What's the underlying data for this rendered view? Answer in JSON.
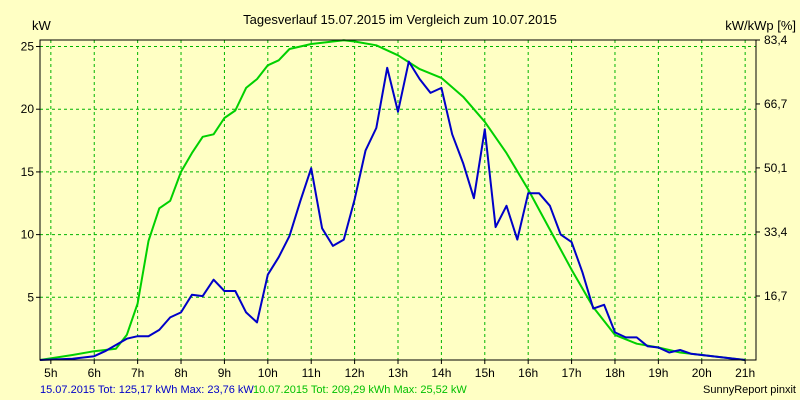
{
  "chart_data": {
    "type": "line",
    "title": "Tagesverlauf 15.07.2015 im Vergleich zum 10.07.2015",
    "ylabel_left": "kW",
    "ylabel_right": "kW/kWp [%]",
    "xlim": [
      4.75,
      21.25
    ],
    "ylim": [
      0,
      25.52
    ],
    "x_ticks": [
      5,
      6,
      7,
      8,
      9,
      10,
      11,
      12,
      13,
      14,
      15,
      16,
      17,
      18,
      19,
      20,
      21
    ],
    "x_tick_labels": [
      "5h",
      "6h",
      "7h",
      "8h",
      "9h",
      "10h",
      "11h",
      "12h",
      "13h",
      "14h",
      "15h",
      "16h",
      "17h",
      "18h",
      "19h",
      "20h",
      "21h"
    ],
    "y_ticks_left": [
      5,
      10,
      15,
      20,
      25
    ],
    "y_tick_labels_left": [
      "5",
      "10",
      "15",
      "20",
      "25"
    ],
    "y_ticks_right": [
      5.105,
      10.21,
      15.32,
      20.42,
      25.52
    ],
    "y_tick_labels_right": [
      "16,7",
      "33,4",
      "50,1",
      "66,7",
      "83,4"
    ],
    "grid": true,
    "series": [
      {
        "name": "15.07.2015",
        "color": "#0000c8",
        "x": [
          4.75,
          5.5,
          6.0,
          6.25,
          6.5,
          6.75,
          7.0,
          7.25,
          7.5,
          7.75,
          8.0,
          8.25,
          8.5,
          8.75,
          9.0,
          9.25,
          9.5,
          9.75,
          10.0,
          10.25,
          10.5,
          10.75,
          11.0,
          11.25,
          11.5,
          11.75,
          12.0,
          12.25,
          12.5,
          12.75,
          13.0,
          13.25,
          13.5,
          13.75,
          14.0,
          14.25,
          14.5,
          14.75,
          15.0,
          15.25,
          15.5,
          15.75,
          16.0,
          16.25,
          16.5,
          16.75,
          17.0,
          17.25,
          17.5,
          17.75,
          18.0,
          18.25,
          18.5,
          18.75,
          19.0,
          19.25,
          19.5,
          19.75,
          20.0,
          20.25,
          20.5,
          20.75,
          21.0
        ],
        "y": [
          0.0,
          0.1,
          0.3,
          0.7,
          1.2,
          1.7,
          1.9,
          1.9,
          2.4,
          3.4,
          3.8,
          5.2,
          5.1,
          6.4,
          5.5,
          5.5,
          3.8,
          3.0,
          6.8,
          8.2,
          9.9,
          12.7,
          15.3,
          10.5,
          9.1,
          9.6,
          12.8,
          16.7,
          18.5,
          23.3,
          19.8,
          23.8,
          22.4,
          21.3,
          21.7,
          18.0,
          15.7,
          12.9,
          18.4,
          10.6,
          12.3,
          9.6,
          13.3,
          13.3,
          12.3,
          10.0,
          9.4,
          7.0,
          4.1,
          4.4,
          2.2,
          1.8,
          1.8,
          1.1,
          1.0,
          0.6,
          0.8,
          0.5,
          0.4,
          0.3,
          0.2,
          0.1,
          0.0
        ]
      },
      {
        "name": "10.07.2015",
        "color": "#00d000",
        "x": [
          4.75,
          5.5,
          6.0,
          6.5,
          6.75,
          7.0,
          7.25,
          7.5,
          7.75,
          8.0,
          8.25,
          8.5,
          8.75,
          9.0,
          9.25,
          9.5,
          9.75,
          10.0,
          10.25,
          10.5,
          10.75,
          11.0,
          11.25,
          11.5,
          11.75,
          12.0,
          12.5,
          13.0,
          13.5,
          14.0,
          14.5,
          15.0,
          15.5,
          16.0,
          16.5,
          17.0,
          17.5,
          18.0,
          18.5,
          19.0,
          19.5,
          20.0,
          20.5,
          21.0
        ],
        "y": [
          0.0,
          0.4,
          0.7,
          0.9,
          2.0,
          4.5,
          9.5,
          12.1,
          12.7,
          15.0,
          16.5,
          17.8,
          18.0,
          19.3,
          19.9,
          21.7,
          22.4,
          23.5,
          23.9,
          24.8,
          25.0,
          25.2,
          25.3,
          25.4,
          25.5,
          25.4,
          25.1,
          24.3,
          23.2,
          22.5,
          21.0,
          19.0,
          16.5,
          13.6,
          10.4,
          7.2,
          4.2,
          2.0,
          1.3,
          1.0,
          0.6,
          0.4,
          0.2,
          0.0
        ]
      }
    ]
  },
  "footer": {
    "series1_label": "15.07.2015 Tot: 125,17 kWh Max: 23,76 kW",
    "series2_label": "10.07.2015 Tot: 209,29 kWh Max: 25,52 kW",
    "brand": "SunnyReport pinxit"
  },
  "colors": {
    "background": "#ffffc4",
    "grid": "#00b400",
    "frame": "#000000"
  }
}
